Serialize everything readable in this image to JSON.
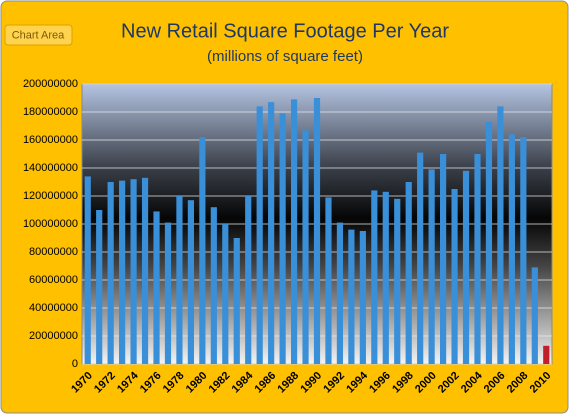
{
  "tooltip": "Chart Area",
  "chart_data": {
    "type": "bar",
    "title": "New Retail Square Footage Per Year",
    "subtitle": "(millions of square feet)",
    "categories": [
      "1970",
      null,
      "1972",
      null,
      "1974",
      null,
      "1976",
      null,
      "1978",
      null,
      "1980",
      null,
      "1982",
      null,
      "1984",
      null,
      "1986",
      null,
      "1988",
      null,
      "1990",
      null,
      "1992",
      null,
      "1994",
      null,
      "1996",
      null,
      "1998",
      null,
      "2000",
      null,
      "2002",
      null,
      "2004",
      null,
      "2006",
      null,
      "2008",
      null,
      "2010"
    ],
    "values": [
      134000000,
      110000000,
      130000000,
      131000000,
      132000000,
      133000000,
      109000000,
      101000000,
      120000000,
      117000000,
      162000000,
      112000000,
      100000000,
      90000000,
      120000000,
      184000000,
      187000000,
      179000000,
      189000000,
      167000000,
      190000000,
      119000000,
      101000000,
      96000000,
      95000000,
      124000000,
      123000000,
      118000000,
      130000000,
      151000000,
      139000000,
      150000000,
      125000000,
      138000000,
      150000000,
      173000000,
      184000000,
      164000000,
      162000000,
      69000000,
      13000000
    ],
    "colors": [
      "#3a8fd9",
      "#3a8fd9",
      "#3a8fd9",
      "#3a8fd9",
      "#3a8fd9",
      "#3a8fd9",
      "#3a8fd9",
      "#3a8fd9",
      "#3a8fd9",
      "#3a8fd9",
      "#3a8fd9",
      "#3a8fd9",
      "#3a8fd9",
      "#3a8fd9",
      "#3a8fd9",
      "#3a8fd9",
      "#3a8fd9",
      "#3a8fd9",
      "#3a8fd9",
      "#3a8fd9",
      "#3a8fd9",
      "#3a8fd9",
      "#3a8fd9",
      "#3a8fd9",
      "#3a8fd9",
      "#3a8fd9",
      "#3a8fd9",
      "#3a8fd9",
      "#3a8fd9",
      "#3a8fd9",
      "#3a8fd9",
      "#3a8fd9",
      "#3a8fd9",
      "#3a8fd9",
      "#3a8fd9",
      "#3a8fd9",
      "#3a8fd9",
      "#3a8fd9",
      "#3a8fd9",
      "#3a8fd9",
      "#c0202a"
    ],
    "ylim": [
      0,
      200000000
    ],
    "yticks": [
      0,
      20000000,
      40000000,
      60000000,
      80000000,
      100000000,
      120000000,
      140000000,
      160000000,
      180000000,
      200000000
    ],
    "grid": true
  }
}
